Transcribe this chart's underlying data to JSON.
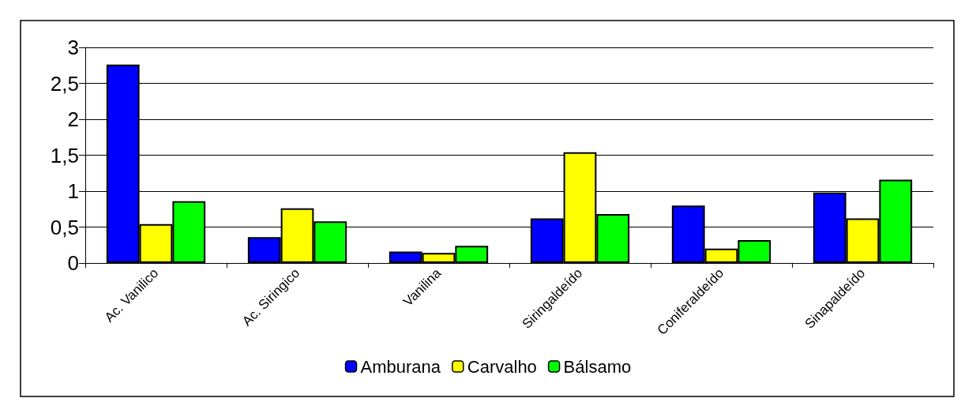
{
  "chart_data": {
    "type": "bar",
    "categories": [
      "Ac. Vanilico",
      "Ac. Siringico",
      "Vanilina",
      "Siringaldeído",
      "Coniferaldeído",
      "Sinapaldeído"
    ],
    "series": [
      {
        "name": "Amburana",
        "color": "#0000ff",
        "values": [
          2.76,
          0.36,
          0.16,
          0.62,
          0.8,
          0.98
        ]
      },
      {
        "name": "Carvalho",
        "color": "#ffff00",
        "values": [
          0.54,
          0.76,
          0.14,
          1.54,
          0.2,
          0.62
        ]
      },
      {
        "name": "Bálsamo",
        "color": "#00ff00",
        "values": [
          0.86,
          0.58,
          0.24,
          0.68,
          0.32,
          1.16
        ]
      }
    ],
    "ylim": [
      0,
      3
    ],
    "yticks": [
      0,
      {
        "value": 0.5,
        "label": "0,5"
      },
      1,
      {
        "value": 1.5,
        "label": "1,5"
      },
      2,
      {
        "value": 2.5,
        "label": "2,5"
      },
      3
    ],
    "grid": "y",
    "legend": "bottom"
  }
}
